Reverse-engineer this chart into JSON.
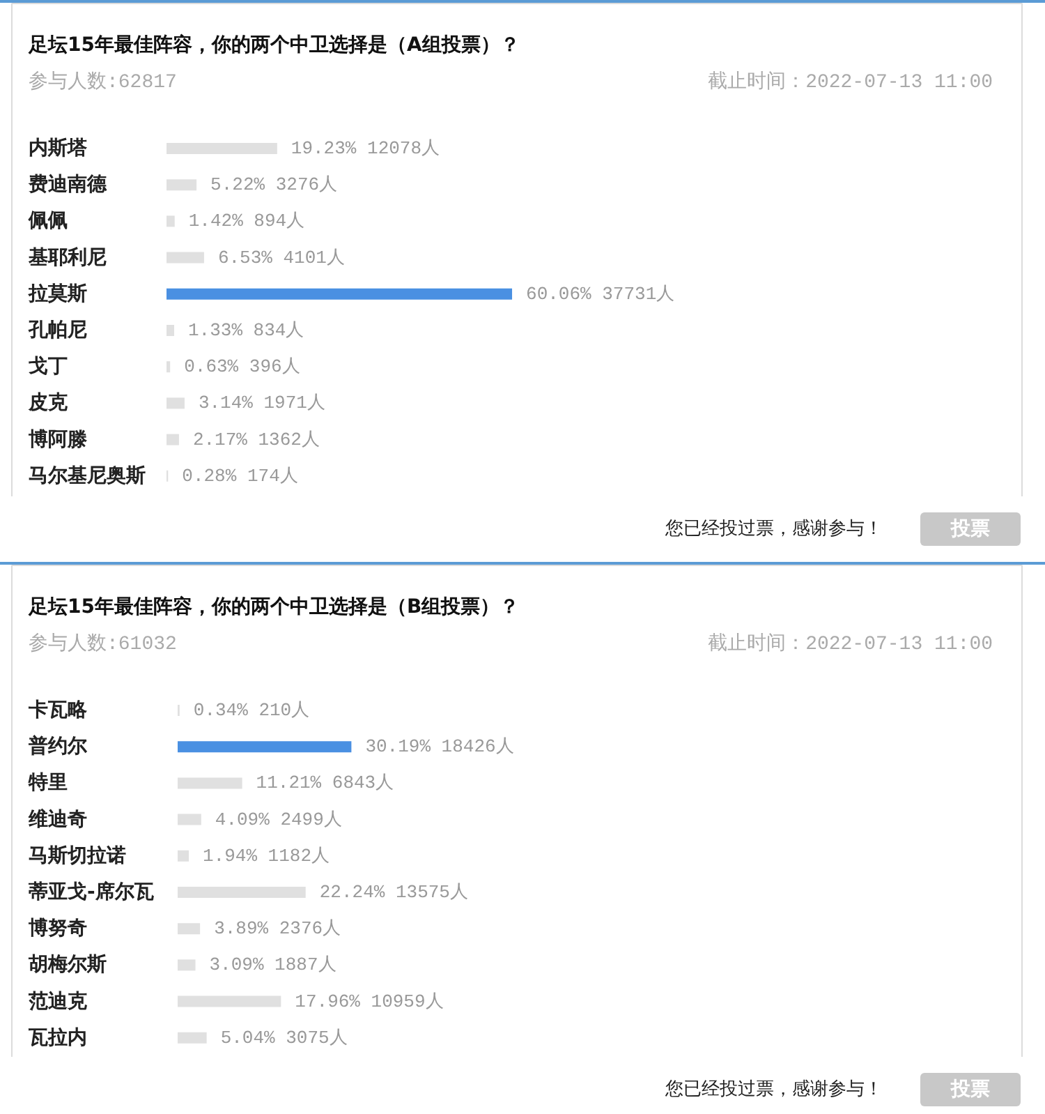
{
  "chart_data": [
    {
      "type": "bar",
      "orientation": "horizontal",
      "title": "足坛15年最佳阵容，你的两个中卫选择是（A组投票）？",
      "categories": [
        "内斯塔",
        "费迪南德",
        "佩佩",
        "基耶利尼",
        "拉莫斯",
        "孔帕尼",
        "戈丁",
        "皮克",
        "博阿滕",
        "马尔基尼奥斯"
      ],
      "values": [
        19.23,
        5.22,
        1.42,
        6.53,
        60.06,
        1.33,
        0.63,
        3.14,
        2.17,
        0.28
      ],
      "colors": [
        "#e0e0e0",
        "#e0e0e0",
        "#e0e0e0",
        "#e0e0e0",
        "#4a90e2",
        "#e0e0e0",
        "#e0e0e0",
        "#e0e0e0",
        "#e0e0e0",
        "#e0e0e0"
      ],
      "value_labels": [
        "19.23% 12078人",
        "5.22% 3276人",
        "1.42% 894人",
        "6.53% 4101人",
        "60.06% 37731人",
        "1.33% 834人",
        "0.63% 396人",
        "3.14% 1971人",
        "2.17% 1362人",
        "0.28% 174人"
      ],
      "annotations": [
        "参与人数:62817",
        "截止时间：2022-07-13 11:00",
        "您已经投过票，感谢参与！",
        "投票"
      ]
    },
    {
      "type": "bar",
      "orientation": "horizontal",
      "title": "足坛15年最佳阵容，你的两个中卫选择是（B组投票）？",
      "categories": [
        "卡瓦略",
        "普约尔",
        "特里",
        "维迪奇",
        "马斯切拉诺",
        "蒂亚戈-席尔瓦",
        "博努奇",
        "胡梅尔斯",
        "范迪克",
        "瓦拉内"
      ],
      "values": [
        0.34,
        30.19,
        11.21,
        4.09,
        1.94,
        22.24,
        3.89,
        3.09,
        17.96,
        5.04
      ],
      "colors": [
        "#e0e0e0",
        "#4a90e2",
        "#e0e0e0",
        "#e0e0e0",
        "#e0e0e0",
        "#e0e0e0",
        "#e0e0e0",
        "#e0e0e0",
        "#e0e0e0",
        "#e0e0e0"
      ],
      "value_labels": [
        "0.34% 210人",
        "30.19% 18426人",
        "11.21% 6843人",
        "4.09% 2499人",
        "1.94% 1182人",
        "22.24% 13575人",
        "3.89% 2376人",
        "3.09% 1887人",
        "17.96% 10959人",
        "5.04% 3075人"
      ],
      "annotations": [
        "参与人数:61032",
        "截止时间：2022-07-13 11:00",
        "您已经投过票，感谢参与！",
        "投票"
      ]
    }
  ]
}
